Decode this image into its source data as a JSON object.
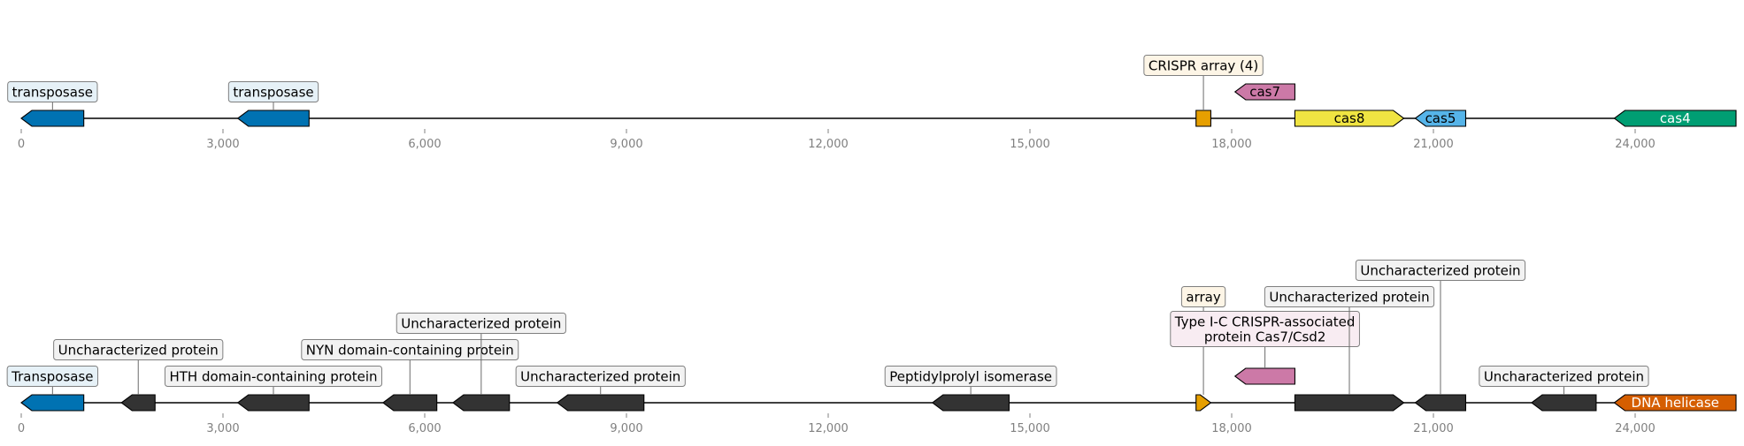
{
  "axis": {
    "min": 0,
    "max": 25500,
    "ticks": [
      0,
      3000,
      6000,
      9000,
      12000,
      15000,
      18000,
      21000,
      24000
    ],
    "tick_labels": [
      "0",
      "3,000",
      "6,000",
      "9,000",
      "12,000",
      "15,000",
      "18,000",
      "21,000",
      "24,000"
    ]
  },
  "tracks": [
    {
      "name": "upper-track",
      "features": [
        {
          "start": 0,
          "end": 930,
          "strand": -1,
          "color": "#0072b2",
          "inner": "",
          "label": "transposase",
          "label_bg": "#e6f1f7",
          "label_level": 0
        },
        {
          "start": 3220,
          "end": 4280,
          "strand": -1,
          "color": "#0072b2",
          "inner": "",
          "label": "transposase",
          "label_bg": "#e6f1f7",
          "label_level": 0
        },
        {
          "start": 17470,
          "end": 17690,
          "strand": 0,
          "color": "#e69f00",
          "inner": "",
          "label": "CRISPR array (4)",
          "label_bg": "#fdf5e6",
          "label_level": 1
        },
        {
          "start": 18050,
          "end": 18940,
          "strand": -1,
          "color": "#cc79a7",
          "inner": "cas7",
          "inner_color": "#000000",
          "label": "",
          "level": 1
        },
        {
          "start": 18940,
          "end": 20560,
          "strand": 1,
          "color": "#f0e442",
          "inner": "cas8",
          "inner_color": "#000000",
          "label": ""
        },
        {
          "start": 20730,
          "end": 21480,
          "strand": -1,
          "color": "#56b4e9",
          "inner": "cas5",
          "inner_color": "#000000",
          "label": ""
        },
        {
          "start": 23690,
          "end": 25500,
          "strand": -1,
          "color": "#009e73",
          "inner": "cas4",
          "inner_color": "#ffffff",
          "label": ""
        }
      ]
    },
    {
      "name": "lower-track",
      "features": [
        {
          "start": 0,
          "end": 930,
          "strand": -1,
          "color": "#0072b2",
          "inner": "",
          "label": "Transposase",
          "label_bg": "#e6f1f7",
          "label_level": 0
        },
        {
          "start": 1490,
          "end": 1990,
          "strand": -1,
          "color": "#333333",
          "inner": "",
          "label": "Uncharacterized protein",
          "label_bg": "#f2f2f2",
          "label_level": 1
        },
        {
          "start": 3220,
          "end": 4280,
          "strand": -1,
          "color": "#333333",
          "inner": "",
          "label": "HTH domain-containing protein",
          "label_bg": "#f2f2f2",
          "label_level": 0
        },
        {
          "start": 5380,
          "end": 6180,
          "strand": -1,
          "color": "#333333",
          "inner": "",
          "label": "NYN domain-containing protein",
          "label_bg": "#f2f2f2",
          "label_level": 1
        },
        {
          "start": 6420,
          "end": 7260,
          "strand": -1,
          "color": "#333333",
          "inner": "",
          "label": "Uncharacterized protein",
          "label_bg": "#f2f2f2",
          "label_level": 2
        },
        {
          "start": 7970,
          "end": 9260,
          "strand": -1,
          "color": "#333333",
          "inner": "",
          "label": "Uncharacterized protein",
          "label_bg": "#f2f2f2",
          "label_level": 0
        },
        {
          "start": 13550,
          "end": 14690,
          "strand": -1,
          "color": "#333333",
          "inner": "",
          "label": "Peptidylprolyl isomerase",
          "label_bg": "#f2f2f2",
          "label_level": 0
        },
        {
          "start": 17470,
          "end": 17690,
          "strand": 1,
          "color": "#e69f00",
          "inner": "",
          "label": "array",
          "label_bg": "#fdf5e6",
          "label_level": 3
        },
        {
          "start": 18050,
          "end": 18940,
          "strand": -1,
          "color": "#cc79a7",
          "inner": "",
          "label": "Type I-C CRISPR-associated\nprotein Cas7/Csd2",
          "label_bg": "#f8ecf2",
          "label_level": 1.5,
          "level": 1
        },
        {
          "start": 18940,
          "end": 20560,
          "strand": 1,
          "color": "#333333",
          "inner": "",
          "label": "Uncharacterized protein",
          "label_bg": "#f2f2f2",
          "label_level": 3
        },
        {
          "start": 20730,
          "end": 21480,
          "strand": -1,
          "color": "#333333",
          "inner": "",
          "label": "Uncharacterized protein",
          "label_bg": "#f2f2f2",
          "label_level": 4
        },
        {
          "start": 22460,
          "end": 23420,
          "strand": -1,
          "color": "#333333",
          "inner": "",
          "label": "Uncharacterized protein",
          "label_bg": "#f2f2f2",
          "label_level": 0
        },
        {
          "start": 23690,
          "end": 25500,
          "strand": -1,
          "color": "#d55e00",
          "inner": "DNA helicase",
          "inner_color": "#ffffff",
          "label": ""
        }
      ]
    }
  ]
}
